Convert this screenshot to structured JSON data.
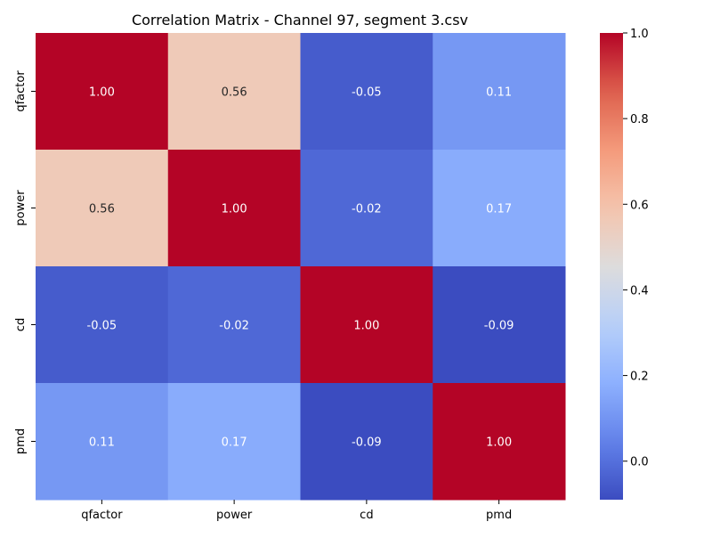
{
  "chart_data": {
    "type": "heatmap",
    "title": "Correlation Matrix - Channel 97, segment 3.csv",
    "rows": [
      "qfactor",
      "power",
      "cd",
      "pmd"
    ],
    "columns": [
      "qfactor",
      "power",
      "cd",
      "pmd"
    ],
    "values": [
      [
        1.0,
        0.56,
        -0.05,
        0.11
      ],
      [
        0.56,
        1.0,
        -0.02,
        0.17
      ],
      [
        -0.05,
        -0.02,
        1.0,
        -0.09
      ],
      [
        0.11,
        0.17,
        -0.09,
        1.0
      ]
    ],
    "value_labels": [
      [
        "1.00",
        "0.56",
        "-0.05",
        "0.11"
      ],
      [
        "0.56",
        "1.00",
        "-0.02",
        "0.17"
      ],
      [
        "-0.05",
        "-0.02",
        "1.00",
        "-0.09"
      ],
      [
        "0.11",
        "0.17",
        "-0.09",
        "1.00"
      ]
    ],
    "colormap": "coolwarm",
    "color_range": [
      -0.09,
      1.0
    ],
    "colorbar": {
      "ticks": [
        0.0,
        0.2,
        0.4,
        0.6,
        0.8,
        1.0
      ],
      "tick_labels": [
        "0.0",
        "0.2",
        "0.4",
        "0.6",
        "0.8",
        "1.0"
      ],
      "placement": "right"
    }
  }
}
